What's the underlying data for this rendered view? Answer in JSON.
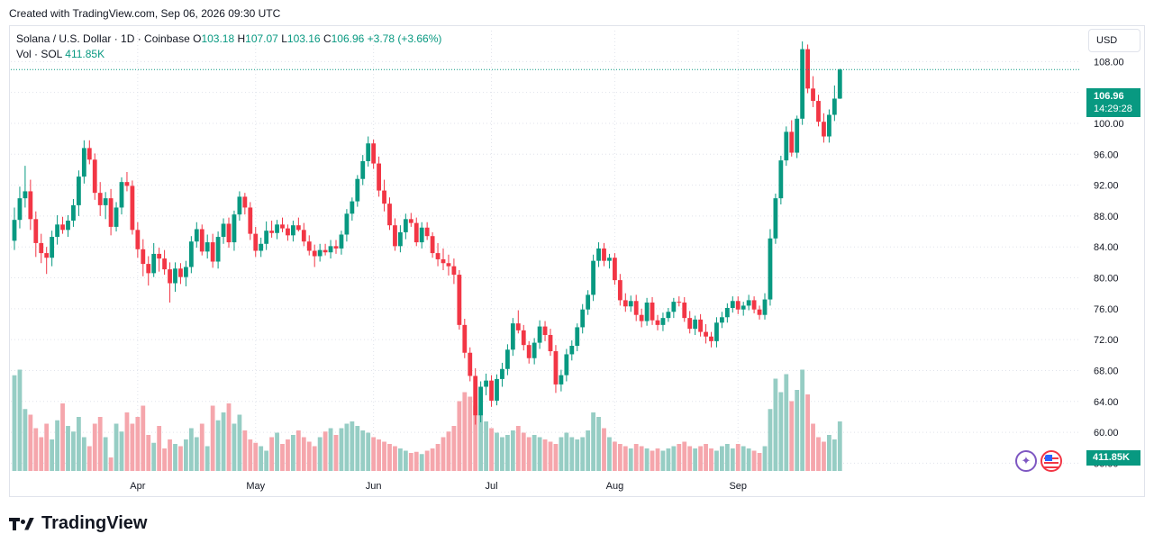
{
  "header": {
    "created_text": "Created with TradingView.com, Sep 06, 2026 09:30 UTC"
  },
  "legend": {
    "symbol": "Solana / U.S. Dollar · 1D · Coinbase",
    "o_label": "O",
    "o_value": "103.18",
    "h_label": "H",
    "h_value": "107.07",
    "l_label": "L",
    "l_value": "103.16",
    "c_label": "C",
    "c_value": "106.96",
    "change": "+3.78 (+3.66%)",
    "vol_label": "Vol · SOL",
    "vol_value": "411.85K"
  },
  "currency_button": "USD",
  "last_price": {
    "price": "106.96",
    "countdown": "14:29:28"
  },
  "volume_badge": "411.85K",
  "brand": {
    "name": "TradingView"
  },
  "icons": [
    "magic-wand-icon",
    "us-flag-icon",
    "tradingview-logo-icon"
  ],
  "colors": {
    "up": "#089981",
    "down": "#f23645",
    "up_vol": "#96cdc4",
    "down_vol": "#f5a6ac",
    "grid": "#e0e3eb"
  },
  "chart_data": {
    "type": "candlestick",
    "y_axis": {
      "ticks": [
        "56.00",
        "60.00",
        "64.00",
        "68.00",
        "72.00",
        "76.00",
        "80.00",
        "84.00",
        "88.00",
        "92.00",
        "96.00",
        "100.00",
        "104.00",
        "108.00"
      ],
      "range": [
        55,
        112
      ]
    },
    "x_axis": {
      "ticks": [
        "Apr",
        "May",
        "Jun",
        "Jul",
        "Aug",
        "Sep"
      ],
      "tick_candle_index": [
        23,
        45,
        67,
        89,
        112,
        135
      ]
    },
    "last_price": 106.96,
    "candles_ohlc": [
      [
        84.8,
        89.1,
        83.6,
        87.5
      ],
      [
        87.5,
        91.8,
        86.4,
        90.3
      ],
      [
        90.3,
        94.5,
        89.1,
        91.2
      ],
      [
        91.2,
        92.7,
        86.2,
        87.6
      ],
      [
        87.6,
        88.6,
        82.7,
        84.5
      ],
      [
        84.5,
        85.7,
        81.9,
        83.2
      ],
      [
        83.2,
        84.0,
        80.5,
        82.6
      ],
      [
        82.6,
        86.1,
        81.5,
        85.3
      ],
      [
        85.3,
        88.1,
        84.3,
        86.9
      ],
      [
        86.9,
        87.9,
        85.7,
        86.2
      ],
      [
        86.2,
        88.1,
        85.3,
        87.4
      ],
      [
        87.4,
        90.2,
        86.6,
        89.4
      ],
      [
        89.4,
        93.9,
        88.0,
        93.1
      ],
      [
        93.1,
        97.8,
        92.2,
        96.8
      ],
      [
        96.8,
        97.8,
        94.7,
        95.3
      ],
      [
        95.3,
        96.1,
        90.1,
        91.0
      ],
      [
        91.0,
        92.4,
        88.0,
        89.4
      ],
      [
        89.4,
        91.1,
        87.6,
        90.3
      ],
      [
        90.3,
        91.5,
        85.5,
        86.6
      ],
      [
        86.6,
        89.8,
        86.0,
        89.1
      ],
      [
        89.1,
        93.0,
        88.2,
        92.4
      ],
      [
        92.4,
        93.7,
        91.2,
        91.9
      ],
      [
        91.9,
        92.6,
        85.6,
        86.2
      ],
      [
        86.2,
        87.2,
        82.6,
        83.7
      ],
      [
        83.7,
        85.0,
        80.2,
        81.8
      ],
      [
        81.8,
        82.8,
        79.0,
        80.6
      ],
      [
        80.6,
        84.5,
        80.1,
        83.1
      ],
      [
        83.1,
        83.9,
        80.8,
        82.5
      ],
      [
        82.5,
        83.6,
        80.4,
        81.1
      ],
      [
        81.1,
        82.0,
        76.8,
        79.3
      ],
      [
        79.3,
        82.0,
        78.2,
        81.2
      ],
      [
        81.2,
        81.9,
        79.2,
        80.1
      ],
      [
        80.1,
        82.2,
        78.9,
        81.4
      ],
      [
        81.4,
        85.4,
        80.6,
        84.7
      ],
      [
        84.7,
        87.2,
        83.9,
        86.3
      ],
      [
        86.3,
        86.9,
        82.9,
        83.4
      ],
      [
        83.4,
        85.6,
        82.5,
        84.6
      ],
      [
        84.6,
        85.7,
        81.3,
        82.1
      ],
      [
        82.1,
        86.0,
        81.2,
        85.3
      ],
      [
        85.3,
        87.7,
        84.4,
        87.0
      ],
      [
        87.0,
        87.8,
        83.9,
        84.6
      ],
      [
        84.6,
        88.7,
        83.5,
        88.2
      ],
      [
        88.2,
        91.2,
        87.4,
        90.5
      ],
      [
        90.5,
        91.0,
        88.2,
        89.1
      ],
      [
        89.1,
        89.8,
        84.9,
        85.7
      ],
      [
        85.7,
        86.6,
        82.7,
        83.5
      ],
      [
        83.5,
        85.2,
        82.7,
        84.4
      ],
      [
        84.4,
        87.3,
        83.6,
        86.1
      ],
      [
        86.1,
        87.4,
        85.2,
        85.8
      ],
      [
        85.8,
        87.5,
        85.0,
        86.9
      ],
      [
        86.9,
        87.8,
        85.9,
        86.4
      ],
      [
        86.4,
        86.9,
        84.8,
        85.5
      ],
      [
        85.5,
        87.4,
        84.7,
        86.8
      ],
      [
        86.8,
        87.8,
        86.0,
        86.2
      ],
      [
        86.2,
        87.1,
        84.1,
        84.7
      ],
      [
        84.7,
        85.5,
        82.9,
        83.5
      ],
      [
        83.5,
        84.3,
        81.4,
        82.8
      ],
      [
        82.8,
        84.4,
        82.1,
        83.6
      ],
      [
        83.6,
        84.4,
        82.9,
        83.3
      ],
      [
        83.3,
        84.9,
        82.5,
        84.1
      ],
      [
        84.1,
        84.9,
        83.1,
        83.8
      ],
      [
        83.8,
        86.1,
        83.0,
        85.6
      ],
      [
        85.6,
        88.9,
        84.7,
        88.3
      ],
      [
        88.3,
        90.4,
        87.4,
        89.9
      ],
      [
        89.9,
        93.3,
        89.2,
        92.8
      ],
      [
        92.8,
        95.9,
        92.0,
        95.1
      ],
      [
        95.1,
        98.3,
        94.4,
        97.4
      ],
      [
        97.4,
        97.9,
        94.1,
        94.8
      ],
      [
        94.8,
        95.7,
        90.5,
        91.3
      ],
      [
        91.3,
        92.7,
        88.6,
        89.6
      ],
      [
        89.6,
        90.4,
        86.2,
        86.8
      ],
      [
        86.8,
        87.7,
        83.5,
        84.1
      ],
      [
        84.1,
        86.8,
        83.3,
        85.9
      ],
      [
        85.9,
        88.3,
        85.0,
        87.6
      ],
      [
        87.6,
        88.4,
        86.6,
        87.1
      ],
      [
        87.1,
        87.8,
        84.1,
        84.6
      ],
      [
        84.6,
        87.2,
        83.8,
        86.5
      ],
      [
        86.5,
        87.2,
        84.9,
        85.4
      ],
      [
        85.4,
        85.9,
        82.6,
        83.2
      ],
      [
        83.2,
        84.5,
        81.5,
        82.4
      ],
      [
        82.4,
        83.8,
        81.0,
        81.9
      ],
      [
        81.9,
        83.0,
        80.3,
        81.5
      ],
      [
        81.5,
        82.5,
        79.2,
        80.4
      ],
      [
        80.4,
        81.0,
        73.3,
        73.9
      ],
      [
        73.9,
        74.7,
        69.6,
        70.3
      ],
      [
        70.3,
        71.0,
        66.6,
        67.3
      ],
      [
        67.3,
        68.3,
        61.0,
        62.2
      ],
      [
        62.2,
        66.6,
        61.3,
        65.9
      ],
      [
        65.9,
        67.6,
        64.8,
        66.7
      ],
      [
        66.7,
        67.4,
        63.3,
        64.1
      ],
      [
        64.1,
        67.5,
        63.5,
        66.9
      ],
      [
        66.9,
        69.0,
        65.9,
        68.2
      ],
      [
        68.2,
        71.4,
        67.4,
        70.7
      ],
      [
        70.7,
        74.8,
        69.9,
        74.1
      ],
      [
        74.1,
        75.8,
        72.8,
        73.2
      ],
      [
        73.2,
        73.9,
        70.6,
        71.3
      ],
      [
        71.3,
        71.8,
        68.9,
        69.6
      ],
      [
        69.6,
        72.2,
        68.8,
        71.6
      ],
      [
        71.6,
        74.5,
        70.8,
        73.7
      ],
      [
        73.7,
        74.4,
        71.8,
        72.6
      ],
      [
        72.6,
        73.4,
        69.9,
        70.5
      ],
      [
        70.5,
        71.3,
        65.1,
        66.2
      ],
      [
        66.2,
        68.1,
        65.3,
        67.4
      ],
      [
        67.4,
        70.8,
        66.6,
        70.1
      ],
      [
        70.1,
        71.9,
        69.3,
        71.2
      ],
      [
        71.2,
        74.1,
        70.5,
        73.6
      ],
      [
        73.6,
        76.6,
        72.8,
        75.9
      ],
      [
        75.9,
        78.4,
        75.2,
        77.8
      ],
      [
        77.8,
        83.0,
        77.0,
        82.2
      ],
      [
        82.2,
        84.6,
        81.4,
        83.8
      ],
      [
        83.8,
        84.5,
        81.5,
        82.2
      ],
      [
        82.2,
        83.1,
        81.2,
        82.6
      ],
      [
        82.6,
        83.2,
        79.1,
        79.7
      ],
      [
        79.7,
        80.5,
        76.4,
        77.1
      ],
      [
        77.1,
        78.0,
        75.6,
        76.3
      ],
      [
        76.3,
        77.7,
        75.6,
        77.0
      ],
      [
        77.0,
        77.8,
        74.4,
        75.2
      ],
      [
        75.2,
        76.0,
        73.6,
        74.4
      ],
      [
        74.4,
        77.4,
        73.8,
        76.8
      ],
      [
        76.8,
        77.5,
        73.9,
        74.5
      ],
      [
        74.5,
        75.2,
        73.2,
        73.9
      ],
      [
        73.9,
        75.5,
        73.1,
        74.8
      ],
      [
        74.8,
        76.1,
        74.3,
        75.6
      ],
      [
        75.6,
        77.4,
        74.8,
        76.9
      ],
      [
        76.9,
        77.6,
        76.3,
        76.8
      ],
      [
        76.8,
        77.5,
        74.3,
        74.8
      ],
      [
        74.8,
        75.7,
        72.8,
        73.4
      ],
      [
        73.4,
        75.1,
        72.6,
        74.6
      ],
      [
        74.6,
        75.3,
        72.4,
        73.0
      ],
      [
        73.0,
        74.0,
        71.5,
        72.4
      ],
      [
        72.4,
        73.0,
        71.0,
        71.8
      ],
      [
        71.8,
        74.9,
        71.0,
        74.2
      ],
      [
        74.2,
        75.6,
        73.5,
        74.9
      ],
      [
        74.9,
        76.7,
        74.2,
        76.1
      ],
      [
        76.1,
        77.6,
        75.5,
        77.0
      ],
      [
        77.0,
        77.6,
        75.3,
        75.9
      ],
      [
        75.9,
        76.9,
        75.1,
        76.4
      ],
      [
        76.4,
        77.8,
        75.8,
        77.1
      ],
      [
        77.1,
        77.6,
        75.4,
        75.9
      ],
      [
        75.9,
        76.4,
        74.6,
        75.2
      ],
      [
        75.2,
        78.0,
        74.6,
        77.2
      ],
      [
        77.2,
        86.3,
        76.4,
        85.1
      ],
      [
        85.1,
        90.9,
        84.4,
        90.3
      ],
      [
        90.3,
        95.8,
        89.5,
        95.2
      ],
      [
        95.2,
        99.6,
        94.5,
        98.9
      ],
      [
        98.9,
        100.4,
        95.7,
        96.2
      ],
      [
        96.2,
        101.0,
        95.5,
        100.6
      ],
      [
        100.6,
        110.6,
        99.8,
        109.6
      ],
      [
        109.6,
        110.2,
        103.9,
        104.5
      ],
      [
        104.5,
        106.1,
        102.1,
        102.9
      ],
      [
        102.9,
        103.7,
        99.6,
        100.2
      ],
      [
        100.2,
        101.3,
        97.5,
        98.3
      ],
      [
        98.3,
        101.8,
        97.5,
        101.1
      ],
      [
        101.1,
        104.9,
        100.3,
        103.2
      ],
      [
        103.2,
        107.07,
        103.16,
        106.96
      ]
    ],
    "volume_relative": [
      0.85,
      0.9,
      0.55,
      0.5,
      0.38,
      0.3,
      0.42,
      0.28,
      0.45,
      0.6,
      0.4,
      0.35,
      0.48,
      0.3,
      0.22,
      0.42,
      0.48,
      0.3,
      0.12,
      0.42,
      0.35,
      0.52,
      0.42,
      0.48,
      0.58,
      0.32,
      0.25,
      0.4,
      0.2,
      0.28,
      0.24,
      0.22,
      0.28,
      0.38,
      0.3,
      0.42,
      0.22,
      0.58,
      0.45,
      0.52,
      0.6,
      0.42,
      0.5,
      0.36,
      0.28,
      0.25,
      0.22,
      0.18,
      0.3,
      0.34,
      0.24,
      0.28,
      0.32,
      0.36,
      0.3,
      0.26,
      0.22,
      0.3,
      0.35,
      0.38,
      0.32,
      0.38,
      0.42,
      0.44,
      0.4,
      0.36,
      0.34,
      0.3,
      0.28,
      0.26,
      0.24,
      0.22,
      0.2,
      0.18,
      0.16,
      0.17,
      0.15,
      0.18,
      0.2,
      0.24,
      0.3,
      0.35,
      0.4,
      0.62,
      0.7,
      0.66,
      0.58,
      0.5,
      0.44,
      0.38,
      0.34,
      0.3,
      0.32,
      0.36,
      0.4,
      0.34,
      0.3,
      0.32,
      0.3,
      0.28,
      0.26,
      0.24,
      0.3,
      0.34,
      0.3,
      0.28,
      0.3,
      0.36,
      0.52,
      0.48,
      0.38,
      0.3,
      0.26,
      0.24,
      0.22,
      0.2,
      0.24,
      0.22,
      0.2,
      0.18,
      0.2,
      0.18,
      0.2,
      0.22,
      0.24,
      0.26,
      0.22,
      0.2,
      0.22,
      0.24,
      0.2,
      0.18,
      0.22,
      0.24,
      0.2,
      0.24,
      0.22,
      0.2,
      0.18,
      0.16,
      0.22,
      0.55,
      0.82,
      0.7,
      0.86,
      0.62,
      0.72,
      0.9,
      0.68,
      0.42,
      0.3,
      0.26,
      0.32,
      0.28,
      0.44
    ]
  }
}
